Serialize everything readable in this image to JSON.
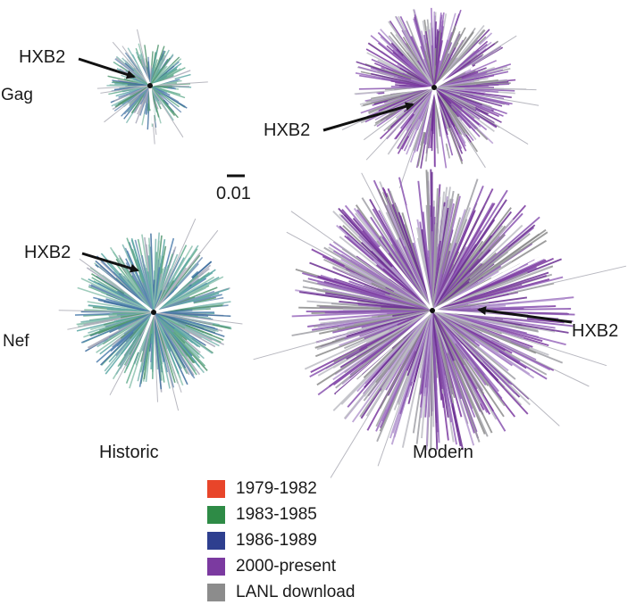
{
  "rows": {
    "gag": "Gag",
    "nef": "Nef"
  },
  "columns": {
    "historic": "Historic",
    "modern": "Modern"
  },
  "reference_label": "HXB2",
  "scale_bar": "0.01",
  "legend": [
    {
      "label": "1979-1982",
      "color": "#e8452a"
    },
    {
      "label": "1983-1985",
      "color": "#2e8b46"
    },
    {
      "label": "1986-1989",
      "color": "#2e3f8f"
    },
    {
      "label": "2000-present",
      "color": "#7b3aa0"
    },
    {
      "label": "LANL download",
      "color": "#8c8c8c"
    }
  ],
  "palettes": {
    "historic": [
      "#5aa7a4",
      "#4f7fae",
      "#64ad8e",
      "#6f90b6",
      "#7fb8b3",
      "#3f6f9f",
      "#8ec3b0",
      "#a8a8b8",
      "#50956f"
    ],
    "modern": [
      "#7b3aa0",
      "#9a6bbd",
      "#a0a0a6",
      "#8c8c8c",
      "#b59ad0",
      "#6b2f92",
      "#bdbdc4",
      "#8a55b0"
    ]
  }
}
